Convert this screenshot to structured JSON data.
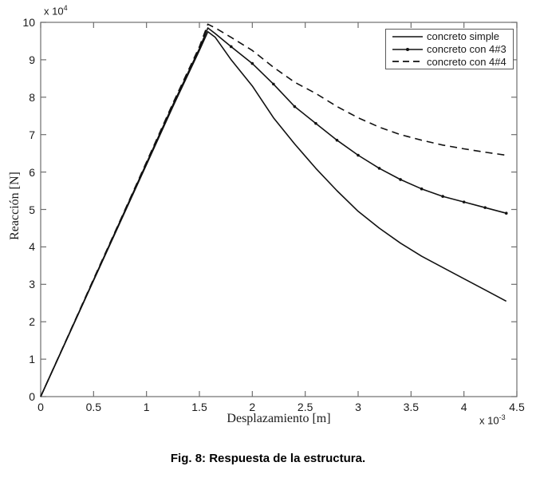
{
  "figure": {
    "caption": "Fig. 8: Respuesta de la estructura."
  },
  "chart_data": {
    "type": "line",
    "title": "",
    "xlabel": "Desplazamiento [m]",
    "ylabel": "Reacción [N]",
    "x_scale": {
      "base": "x 10",
      "exp": "-3"
    },
    "y_scale": {
      "base": "x 10",
      "exp": "4"
    },
    "xlim": [
      0,
      4.5
    ],
    "ylim": [
      0,
      10
    ],
    "x_ticks": [
      0,
      0.5,
      1,
      1.5,
      2,
      2.5,
      3,
      3.5,
      4,
      4.5
    ],
    "x_tick_labels": [
      "0",
      "0.5",
      "1",
      "1.5",
      "2",
      "2.5",
      "3",
      "3.5",
      "4",
      "4.5"
    ],
    "y_ticks": [
      0,
      1,
      2,
      3,
      4,
      5,
      6,
      7,
      8,
      9,
      10
    ],
    "y_tick_labels": [
      "0",
      "1",
      "2",
      "3",
      "4",
      "5",
      "6",
      "7",
      "8",
      "9",
      "10"
    ],
    "grid": false,
    "legend_position": "top-right",
    "colors": {
      "line": "#111111",
      "axis": "#6e6e6e",
      "background": "#ffffff"
    },
    "series": [
      {
        "name": "concreto simple",
        "style": "solid",
        "marker": "none",
        "marker_start_x": null,
        "x": [
          0,
          0.25,
          0.5,
          0.75,
          1.0,
          1.25,
          1.5,
          1.58,
          1.65,
          1.8,
          2.0,
          2.2,
          2.4,
          2.6,
          2.8,
          3.0,
          3.2,
          3.4,
          3.6,
          3.8,
          4.0,
          4.2,
          4.4
        ],
        "y": [
          0,
          1.55,
          3.1,
          4.65,
          6.2,
          7.75,
          9.25,
          9.75,
          9.6,
          9.0,
          8.3,
          7.45,
          6.75,
          6.1,
          5.5,
          4.95,
          4.5,
          4.1,
          3.75,
          3.45,
          3.15,
          2.85,
          2.55
        ]
      },
      {
        "name": "concreto con 4#3",
        "style": "solid",
        "marker": "dot",
        "marker_start_x": 1.7,
        "x": [
          0,
          0.25,
          0.5,
          0.75,
          1.0,
          1.25,
          1.5,
          1.58,
          1.65,
          1.8,
          2.0,
          2.2,
          2.4,
          2.6,
          2.8,
          3.0,
          3.2,
          3.4,
          3.6,
          3.8,
          4.0,
          4.2,
          4.4
        ],
        "y": [
          0,
          1.56,
          3.12,
          4.68,
          6.24,
          7.8,
          9.3,
          9.85,
          9.7,
          9.35,
          8.9,
          8.35,
          7.75,
          7.3,
          6.85,
          6.45,
          6.1,
          5.8,
          5.55,
          5.35,
          5.2,
          5.05,
          4.9
        ]
      },
      {
        "name": "concreto con 4#4",
        "style": "dashed",
        "marker": "none",
        "marker_start_x": null,
        "x": [
          0,
          0.25,
          0.5,
          0.75,
          1.0,
          1.25,
          1.5,
          1.58,
          1.65,
          1.8,
          2.0,
          2.2,
          2.4,
          2.6,
          2.8,
          3.0,
          3.2,
          3.4,
          3.6,
          3.8,
          4.0,
          4.2,
          4.4
        ],
        "y": [
          0,
          1.57,
          3.14,
          4.7,
          6.27,
          7.84,
          9.35,
          9.95,
          9.85,
          9.6,
          9.25,
          8.8,
          8.4,
          8.1,
          7.75,
          7.45,
          7.2,
          7.0,
          6.85,
          6.72,
          6.62,
          6.53,
          6.45
        ]
      }
    ]
  }
}
